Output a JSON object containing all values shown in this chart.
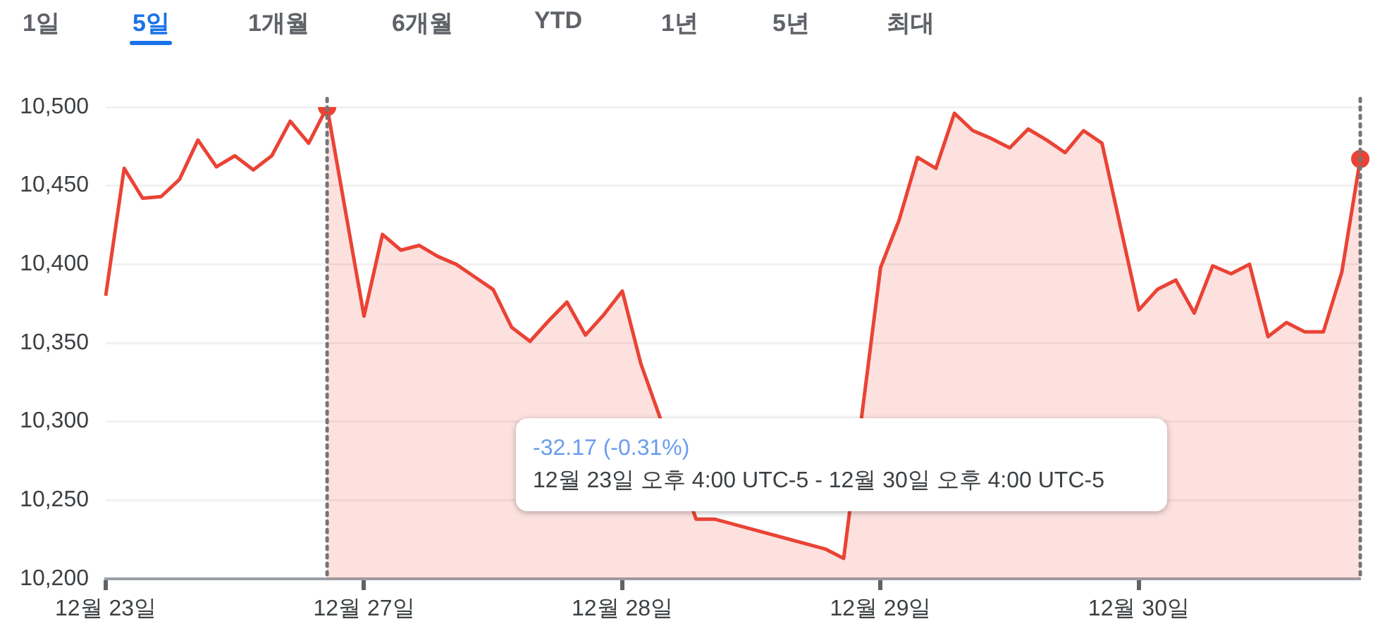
{
  "chart_data": {
    "type": "line",
    "categories": [
      "12월 23일",
      null,
      null,
      null,
      null,
      null,
      null,
      null,
      null,
      null,
      null,
      null,
      null,
      null,
      "12월 27일",
      null,
      null,
      null,
      null,
      null,
      null,
      null,
      null,
      null,
      null,
      null,
      null,
      null,
      "12월 28일",
      null,
      null,
      null,
      null,
      null,
      null,
      null,
      null,
      null,
      null,
      null,
      null,
      null,
      "12월 29일",
      null,
      null,
      null,
      null,
      null,
      null,
      null,
      null,
      null,
      null,
      null,
      null,
      null,
      "12월 30일",
      null,
      null,
      null,
      null,
      null,
      null,
      null,
      null,
      null,
      null,
      null,
      null
    ],
    "series": [
      {
        "color": "#ea4335",
        "values": [
          10380,
          10461,
          10442,
          10443,
          10454,
          10479,
          10462,
          10469,
          10460,
          10469,
          10491,
          10477,
          10500,
          null,
          null,
          null,
          null,
          null,
          null,
          null,
          null,
          null,
          null,
          null,
          null,
          null,
          null,
          null,
          null,
          null,
          null,
          null,
          null,
          null,
          null,
          null,
          null,
          null,
          null,
          null,
          null,
          null,
          null,
          null,
          null,
          null,
          null,
          null,
          null,
          null,
          null,
          null,
          null,
          null,
          null,
          null,
          null,
          null,
          null,
          null,
          null,
          null,
          null,
          null,
          null,
          null,
          null,
          null,
          null
        ]
      },
      {
        "type": "area",
        "color": "#ea4335",
        "values": [
          null,
          null,
          null,
          null,
          null,
          null,
          null,
          null,
          null,
          null,
          null,
          null,
          10500,
          null,
          10367,
          10419,
          10409,
          10412,
          10405,
          10400,
          10392,
          10384,
          10360,
          10351,
          10364,
          10376,
          10355,
          10368,
          10383,
          10337,
          null,
          null,
          10238,
          10238,
          null,
          null,
          null,
          null,
          null,
          10219,
          10213,
          null,
          10398,
          10428,
          10468,
          10461,
          10496,
          10485,
          10480,
          10474,
          10486,
          10479,
          10471,
          10485,
          10477,
          null,
          10371,
          10384,
          10390,
          10369,
          10399,
          10394,
          10400,
          10354,
          10363,
          10357,
          10357,
          10395,
          10467
        ]
      },
      {
        "type": "scatter",
        "color": "#ea4335",
        "values": [
          null,
          null,
          null,
          null,
          null,
          null,
          null,
          null,
          null,
          null,
          null,
          null,
          10500,
          null,
          null,
          null,
          null,
          null,
          null,
          null,
          null,
          null,
          null,
          null,
          null,
          null,
          null,
          null,
          null,
          null,
          null,
          null,
          null,
          null,
          null,
          null,
          null,
          null,
          null,
          null,
          null,
          null,
          null,
          null,
          null,
          null,
          null,
          null,
          null,
          null,
          null,
          null,
          null,
          null,
          null,
          null,
          null,
          null,
          null,
          null,
          null,
          null,
          null,
          null,
          null,
          null,
          null,
          null,
          10467
        ]
      }
    ],
    "ylim": [
      10200,
      10500
    ],
    "yticks": [
      {
        "value": 10200,
        "label": "10,200"
      },
      {
        "value": 10250,
        "label": "10,250"
      },
      {
        "value": 10300,
        "label": "10,300"
      },
      {
        "value": 10350,
        "label": "10,350"
      },
      {
        "value": 10400,
        "label": "10,400"
      },
      {
        "value": 10450,
        "label": "10,450"
      },
      {
        "value": 10500,
        "label": "10,500"
      }
    ],
    "grid": "y",
    "line_style": "solid",
    "annotations": [
      "1일",
      "5일",
      "1개월",
      "6개월",
      "YTD",
      "1년",
      "5년",
      "최대",
      "-32.17 (-0.31%)",
      "12월 23일 오후 4:00 UTC-5 - 12월 30일 오후 4:00 UTC-5"
    ]
  }
}
